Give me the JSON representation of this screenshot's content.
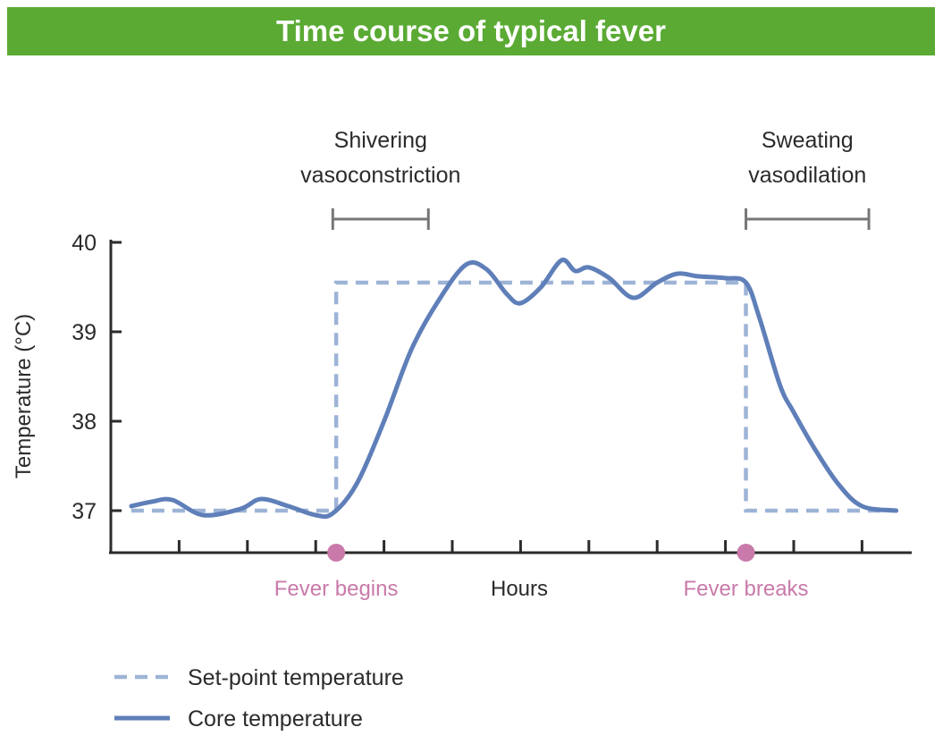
{
  "title": "Time course of typical fever",
  "colors": {
    "title_bar": "#5aaa33",
    "set_point": "#9db4d6",
    "core": "#5f7fb9",
    "event": "#c97aaa",
    "axis": "#2b2b2b",
    "bracket": "#777777"
  },
  "chart_data": {
    "type": "line",
    "xlabel": "Hours",
    "ylabel": "Temperature (°C)",
    "ylim": [
      36.55,
      40.05
    ],
    "xlim": [
      0,
      12
    ],
    "y_ticks": [
      "37",
      "38",
      "39",
      "40"
    ],
    "x_tick_count": 12,
    "series": [
      {
        "name": "Set-point temperature",
        "style": "dashed",
        "x": [
          0.3,
          3.3,
          3.3,
          9.3,
          9.3,
          11.5
        ],
        "y": [
          37.0,
          37.0,
          39.55,
          39.55,
          37.0,
          37.0
        ]
      },
      {
        "name": "Core temperature",
        "style": "solid",
        "x": [
          0.3,
          0.6,
          0.9,
          1.35,
          1.9,
          2.2,
          2.6,
          3.0,
          3.25,
          3.6,
          4.0,
          4.4,
          4.8,
          5.2,
          5.5,
          5.8,
          6.0,
          6.3,
          6.6,
          6.8,
          7.0,
          7.3,
          7.65,
          8.0,
          8.3,
          8.6,
          9.0,
          9.3,
          9.5,
          9.8,
          10.0,
          10.3,
          10.65,
          11.0,
          11.5
        ],
        "y": [
          37.05,
          37.1,
          37.12,
          36.95,
          37.02,
          37.13,
          37.05,
          36.95,
          36.97,
          37.3,
          38.0,
          38.8,
          39.35,
          39.75,
          39.7,
          39.42,
          39.32,
          39.5,
          39.8,
          39.68,
          39.72,
          39.6,
          39.38,
          39.55,
          39.65,
          39.62,
          39.6,
          39.55,
          39.15,
          38.4,
          38.1,
          37.7,
          37.3,
          37.05,
          37.0
        ]
      }
    ],
    "events": [
      {
        "label": "Fever begins",
        "x": 3.3
      },
      {
        "label": "Fever breaks",
        "x": 9.3
      }
    ],
    "annotations": [
      {
        "line1": "Shivering",
        "line2": "vasoconstriction",
        "x_start": 3.25,
        "x_end": 4.65
      },
      {
        "line1": "Sweating",
        "line2": "vasodilation",
        "x_start": 9.3,
        "x_end": 11.1
      }
    ],
    "legend": {
      "placement": "bottom-left",
      "items": [
        {
          "label": "Set-point temperature",
          "style": "dashed"
        },
        {
          "label": "Core temperature",
          "style": "solid"
        }
      ]
    }
  }
}
